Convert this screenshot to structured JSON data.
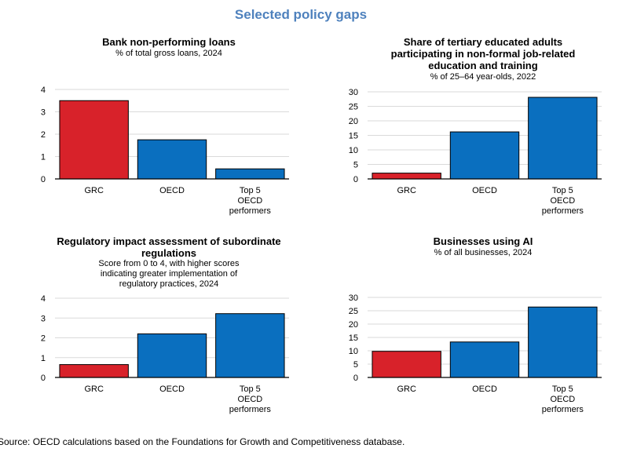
{
  "figure_title": "Selected policy gaps",
  "source": "Source: OECD calculations based on the Foundations for Growth and Competitiveness database.",
  "colors": {
    "highlight": "#d8222a",
    "oecd": "#0a6fbf",
    "title": "#4e81bd"
  },
  "chart_data": [
    {
      "type": "bar",
      "title": "Bank non-performing loans",
      "subtitle": "% of total gross loans, 2024",
      "categories": [
        "GRC",
        "OECD",
        "Top 5 OECD performers"
      ],
      "values": [
        3.5,
        1.75,
        0.45
      ],
      "ylim": [
        0,
        4
      ],
      "yticks": [
        0,
        1,
        2,
        3,
        4
      ],
      "highlight_index": 0
    },
    {
      "type": "bar",
      "title": "Share of tertiary educated adults participating in non-formal job-related education and training",
      "subtitle": "% of 25–64 year-olds, 2022",
      "categories": [
        "GRC",
        "OECD",
        "Top 5 OECD performers"
      ],
      "values": [
        2,
        16.2,
        28.1
      ],
      "ylim": [
        0,
        30
      ],
      "yticks": [
        0,
        5,
        10,
        15,
        20,
        25,
        30
      ],
      "highlight_index": 0
    },
    {
      "type": "bar",
      "title": "Regulatory impact assessment of subordinate regulations",
      "subtitle": "Score from 0 to 4, with higher scores indicating greater implementation of regulatory practices, 2024",
      "categories": [
        "GRC",
        "OECD",
        "Top 5 OECD performers"
      ],
      "values": [
        0.65,
        2.2,
        3.22
      ],
      "ylim": [
        0,
        4
      ],
      "yticks": [
        0,
        1,
        2,
        3,
        4
      ],
      "highlight_index": 0
    },
    {
      "type": "bar",
      "title": "Businesses using AI",
      "subtitle": "% of all businesses, 2024",
      "categories": [
        "GRC",
        "OECD",
        "Top 5 OECD performers"
      ],
      "values": [
        9.8,
        13.3,
        26.4
      ],
      "ylim": [
        0,
        30
      ],
      "yticks": [
        0,
        5,
        10,
        15,
        20,
        25,
        30
      ],
      "highlight_index": 0
    }
  ]
}
